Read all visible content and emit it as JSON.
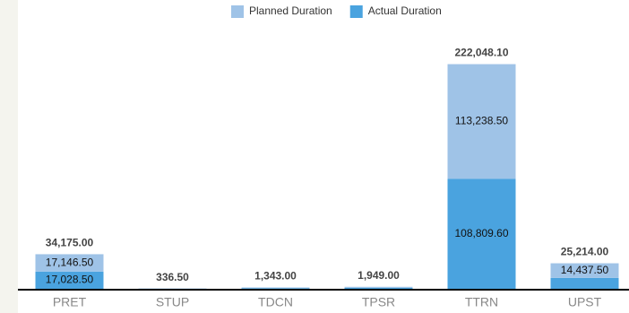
{
  "chart_data": {
    "type": "stacked_bar",
    "categories": [
      "PRET",
      "STUP",
      "TDCN",
      "TPSR",
      "TTRN",
      "UPST"
    ],
    "series": [
      {
        "name": "Actual Duration",
        "color": "#4aa3df",
        "values": [
          17028.5,
          168.25,
          671.5,
          974.5,
          108809.6,
          10776.5
        ],
        "value_labels": [
          "17,028.50",
          null,
          null,
          null,
          "108,809.60",
          null
        ]
      },
      {
        "name": "Planned Duration",
        "color": "#9fc3e7",
        "values": [
          17146.5,
          168.25,
          671.5,
          974.5,
          113238.5,
          14437.5
        ],
        "value_labels": [
          "17,146.50",
          null,
          null,
          null,
          "113,238.50",
          "14,437.50"
        ]
      }
    ],
    "totals": [
      34175.0,
      336.5,
      1343.0,
      1949.0,
      222048.1,
      25214.0
    ],
    "total_labels": [
      "34,175.00",
      "336.50",
      "1,343.00",
      "1,949.00",
      "222,048.10",
      "25,214.00"
    ],
    "legend_order": [
      1,
      0
    ],
    "ylim": [
      0,
      250000
    ]
  }
}
